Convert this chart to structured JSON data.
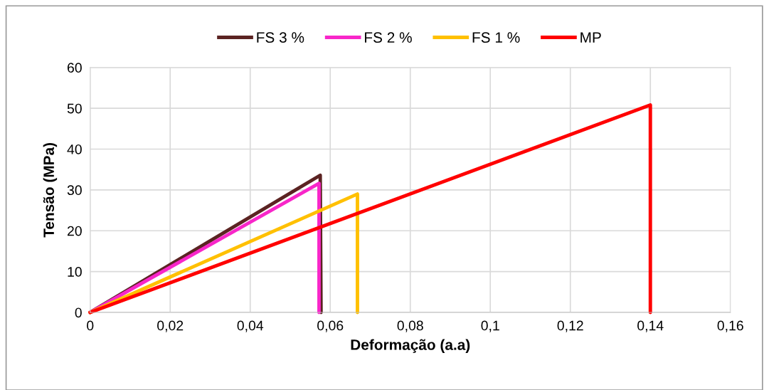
{
  "chart_data": {
    "type": "line",
    "xlabel": "Deformação (a.a)",
    "ylabel": "Tensão (MPa)",
    "series": [
      {
        "name": "FS 3 %",
        "color": "#5b2322",
        "x": [
          0,
          0.0575,
          0.0577
        ],
        "values": [
          0,
          33.6,
          0
        ]
      },
      {
        "name": "FS 2 %",
        "color": "#f826c9",
        "x": [
          0,
          0.0572,
          0.0572
        ],
        "values": [
          0,
          31.6,
          0
        ]
      },
      {
        "name": "FS 1 %",
        "color": "#ffc000",
        "x": [
          0,
          0.0668,
          0.0668
        ],
        "values": [
          0,
          29,
          0
        ]
      },
      {
        "name": "MP",
        "color": "#ff0000",
        "x": [
          0,
          0.14,
          0.14
        ],
        "values": [
          0,
          50.8,
          0
        ]
      }
    ],
    "xlim": [
      0,
      0.16
    ],
    "xticks": [
      0,
      {
        "value": 0.02,
        "label": "0,02"
      },
      {
        "value": 0.04,
        "label": "0,04"
      },
      {
        "value": 0.06,
        "label": "0,06"
      },
      {
        "value": 0.08,
        "label": "0,08"
      },
      {
        "value": 0.1,
        "label": "0,1"
      },
      {
        "value": 0.12,
        "label": "0,12"
      },
      {
        "value": 0.14,
        "label": "0,14"
      },
      {
        "value": 0.16,
        "label": "0,16"
      }
    ],
    "ylim": [
      0,
      60
    ],
    "yticks": [
      0,
      10,
      20,
      30,
      40,
      50,
      60
    ],
    "grid": true,
    "legend": "top",
    "marker": "none",
    "line_style": "solid"
  }
}
